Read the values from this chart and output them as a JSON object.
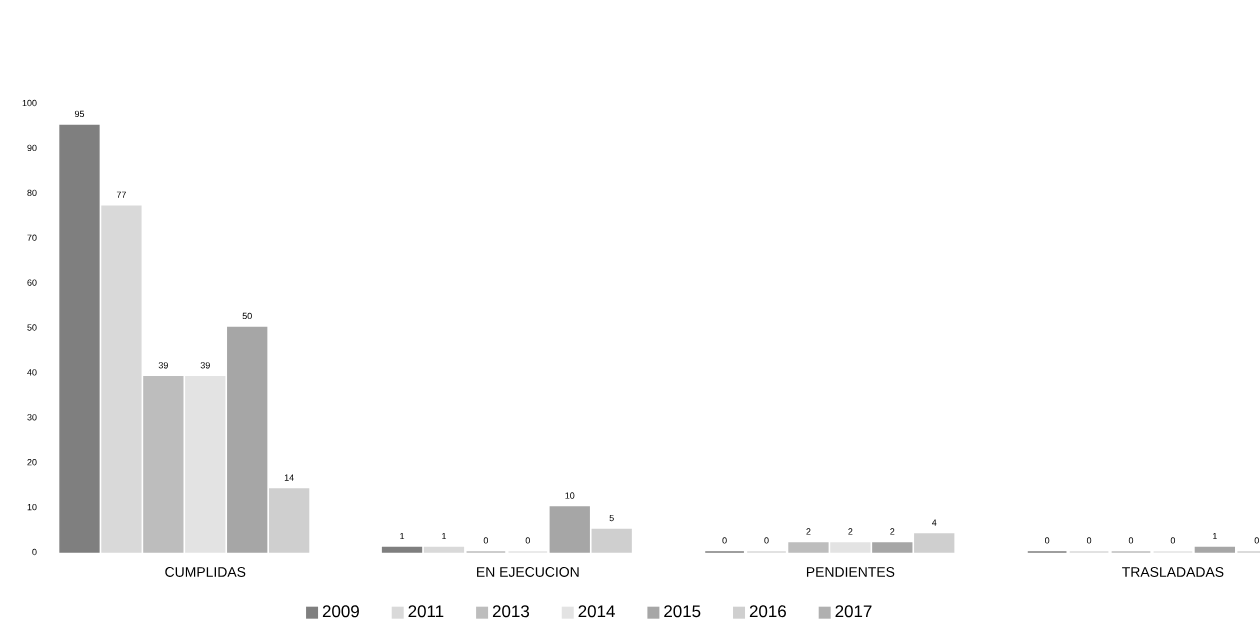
{
  "chart_data": {
    "type": "bar",
    "categories": [
      "CUMPLIDAS",
      "EN EJECUCION",
      "PENDIENTES",
      "TRASLADADAS"
    ],
    "series": [
      {
        "name": "2009",
        "color": "#7f7f7f",
        "values": [
          95,
          1,
          0,
          0
        ],
        "value_labels": [
          "95",
          "1",
          "0",
          "0"
        ]
      },
      {
        "name": "2011",
        "color": "#d9d9d9",
        "values": [
          77,
          1,
          0,
          0
        ],
        "value_labels": [
          "77",
          "1",
          "0",
          "0"
        ]
      },
      {
        "name": "2013",
        "color": "#bdbdbd",
        "values": [
          39,
          0,
          2,
          0
        ],
        "value_labels": [
          "39",
          "0",
          "2",
          "0"
        ]
      },
      {
        "name": "2014",
        "color": "#e3e3e3",
        "values": [
          39,
          0,
          2,
          0
        ],
        "value_labels": [
          "39",
          "0",
          "2",
          "0"
        ]
      },
      {
        "name": "2015",
        "color": "#a6a6a6",
        "values": [
          50,
          10,
          2,
          1
        ],
        "value_labels": [
          "50",
          "10",
          "2",
          "1"
        ]
      },
      {
        "name": "2016",
        "color": "#cfcfcf",
        "values": [
          14,
          5,
          4,
          0
        ],
        "value_labels": [
          "14",
          "5",
          "4",
          "0"
        ]
      },
      {
        "name": "2017",
        "color": "#b0b0b0",
        "values": [
          null,
          null,
          null,
          null
        ],
        "value_labels": [
          null,
          null,
          null,
          null
        ]
      }
    ],
    "ylim": [
      0,
      100
    ],
    "yticks": [
      0,
      10,
      20,
      30,
      40,
      50,
      60,
      70,
      80,
      90,
      100
    ],
    "legend": "bottom"
  }
}
